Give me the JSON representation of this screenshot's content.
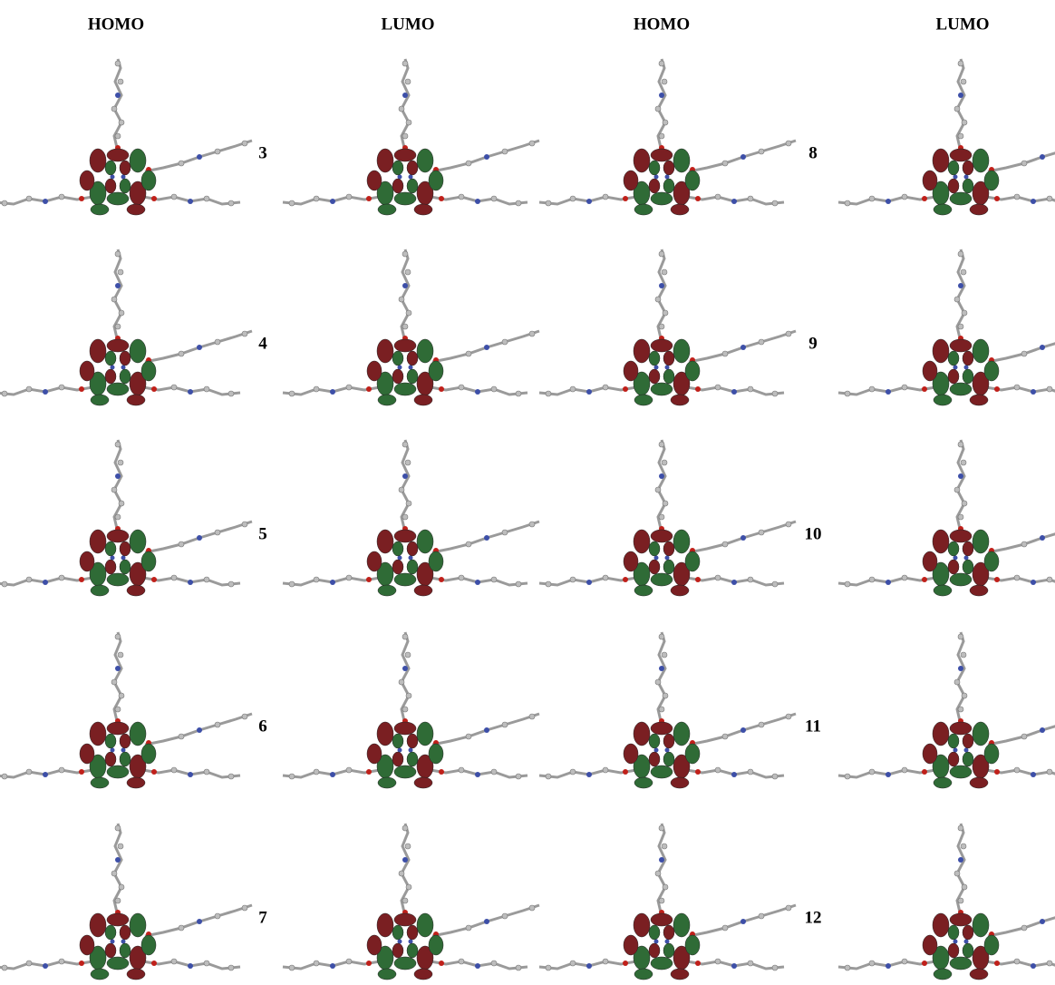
{
  "headers": [
    "HOMO",
    "LUMO",
    "HOMO",
    "LUMO"
  ],
  "rows": [
    {
      "left_label": "3",
      "right_label": "8"
    },
    {
      "left_label": "4",
      "right_label": "9"
    },
    {
      "left_label": "5",
      "right_label": "10"
    },
    {
      "left_label": "6",
      "right_label": "11"
    },
    {
      "left_label": "7",
      "right_label": "12"
    }
  ]
}
